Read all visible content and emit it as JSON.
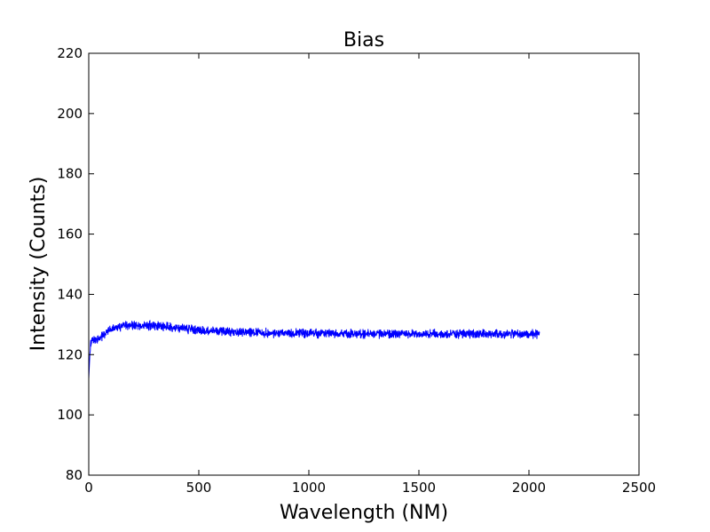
{
  "chart_data": {
    "type": "line",
    "title": "Bias",
    "xlabel": "Wavelength (NM)",
    "ylabel": "Intensity (Counts)",
    "xlim": [
      0,
      2500
    ],
    "ylim": [
      80,
      220
    ],
    "xticks": [
      0,
      500,
      1000,
      1500,
      2000,
      2500
    ],
    "yticks": [
      80,
      100,
      120,
      140,
      160,
      180,
      200,
      220
    ],
    "xtick_labels": [
      "0",
      "500",
      "1000",
      "1500",
      "2000",
      "2500"
    ],
    "ytick_labels": [
      "80",
      "100",
      "120",
      "140",
      "160",
      "180",
      "200",
      "220"
    ],
    "grid": false,
    "legend": "none",
    "series": [
      {
        "color": "#0000ff",
        "noise_amplitude": 1.2,
        "x": [
          0,
          5,
          10,
          20,
          40,
          60,
          80,
          100,
          150,
          200,
          250,
          300,
          350,
          400,
          450,
          500,
          600,
          700,
          800,
          900,
          1000,
          1200,
          1400,
          1600,
          1800,
          2000,
          2048
        ],
        "y": [
          112,
          120,
          124,
          124.5,
          125,
          126,
          127.5,
          128.3,
          129.3,
          129.7,
          129.8,
          129.7,
          129.3,
          128.9,
          128.4,
          128.0,
          127.6,
          127.4,
          127.2,
          127.1,
          127.0,
          126.9,
          126.9,
          126.9,
          126.9,
          126.8,
          126.8
        ]
      }
    ]
  }
}
